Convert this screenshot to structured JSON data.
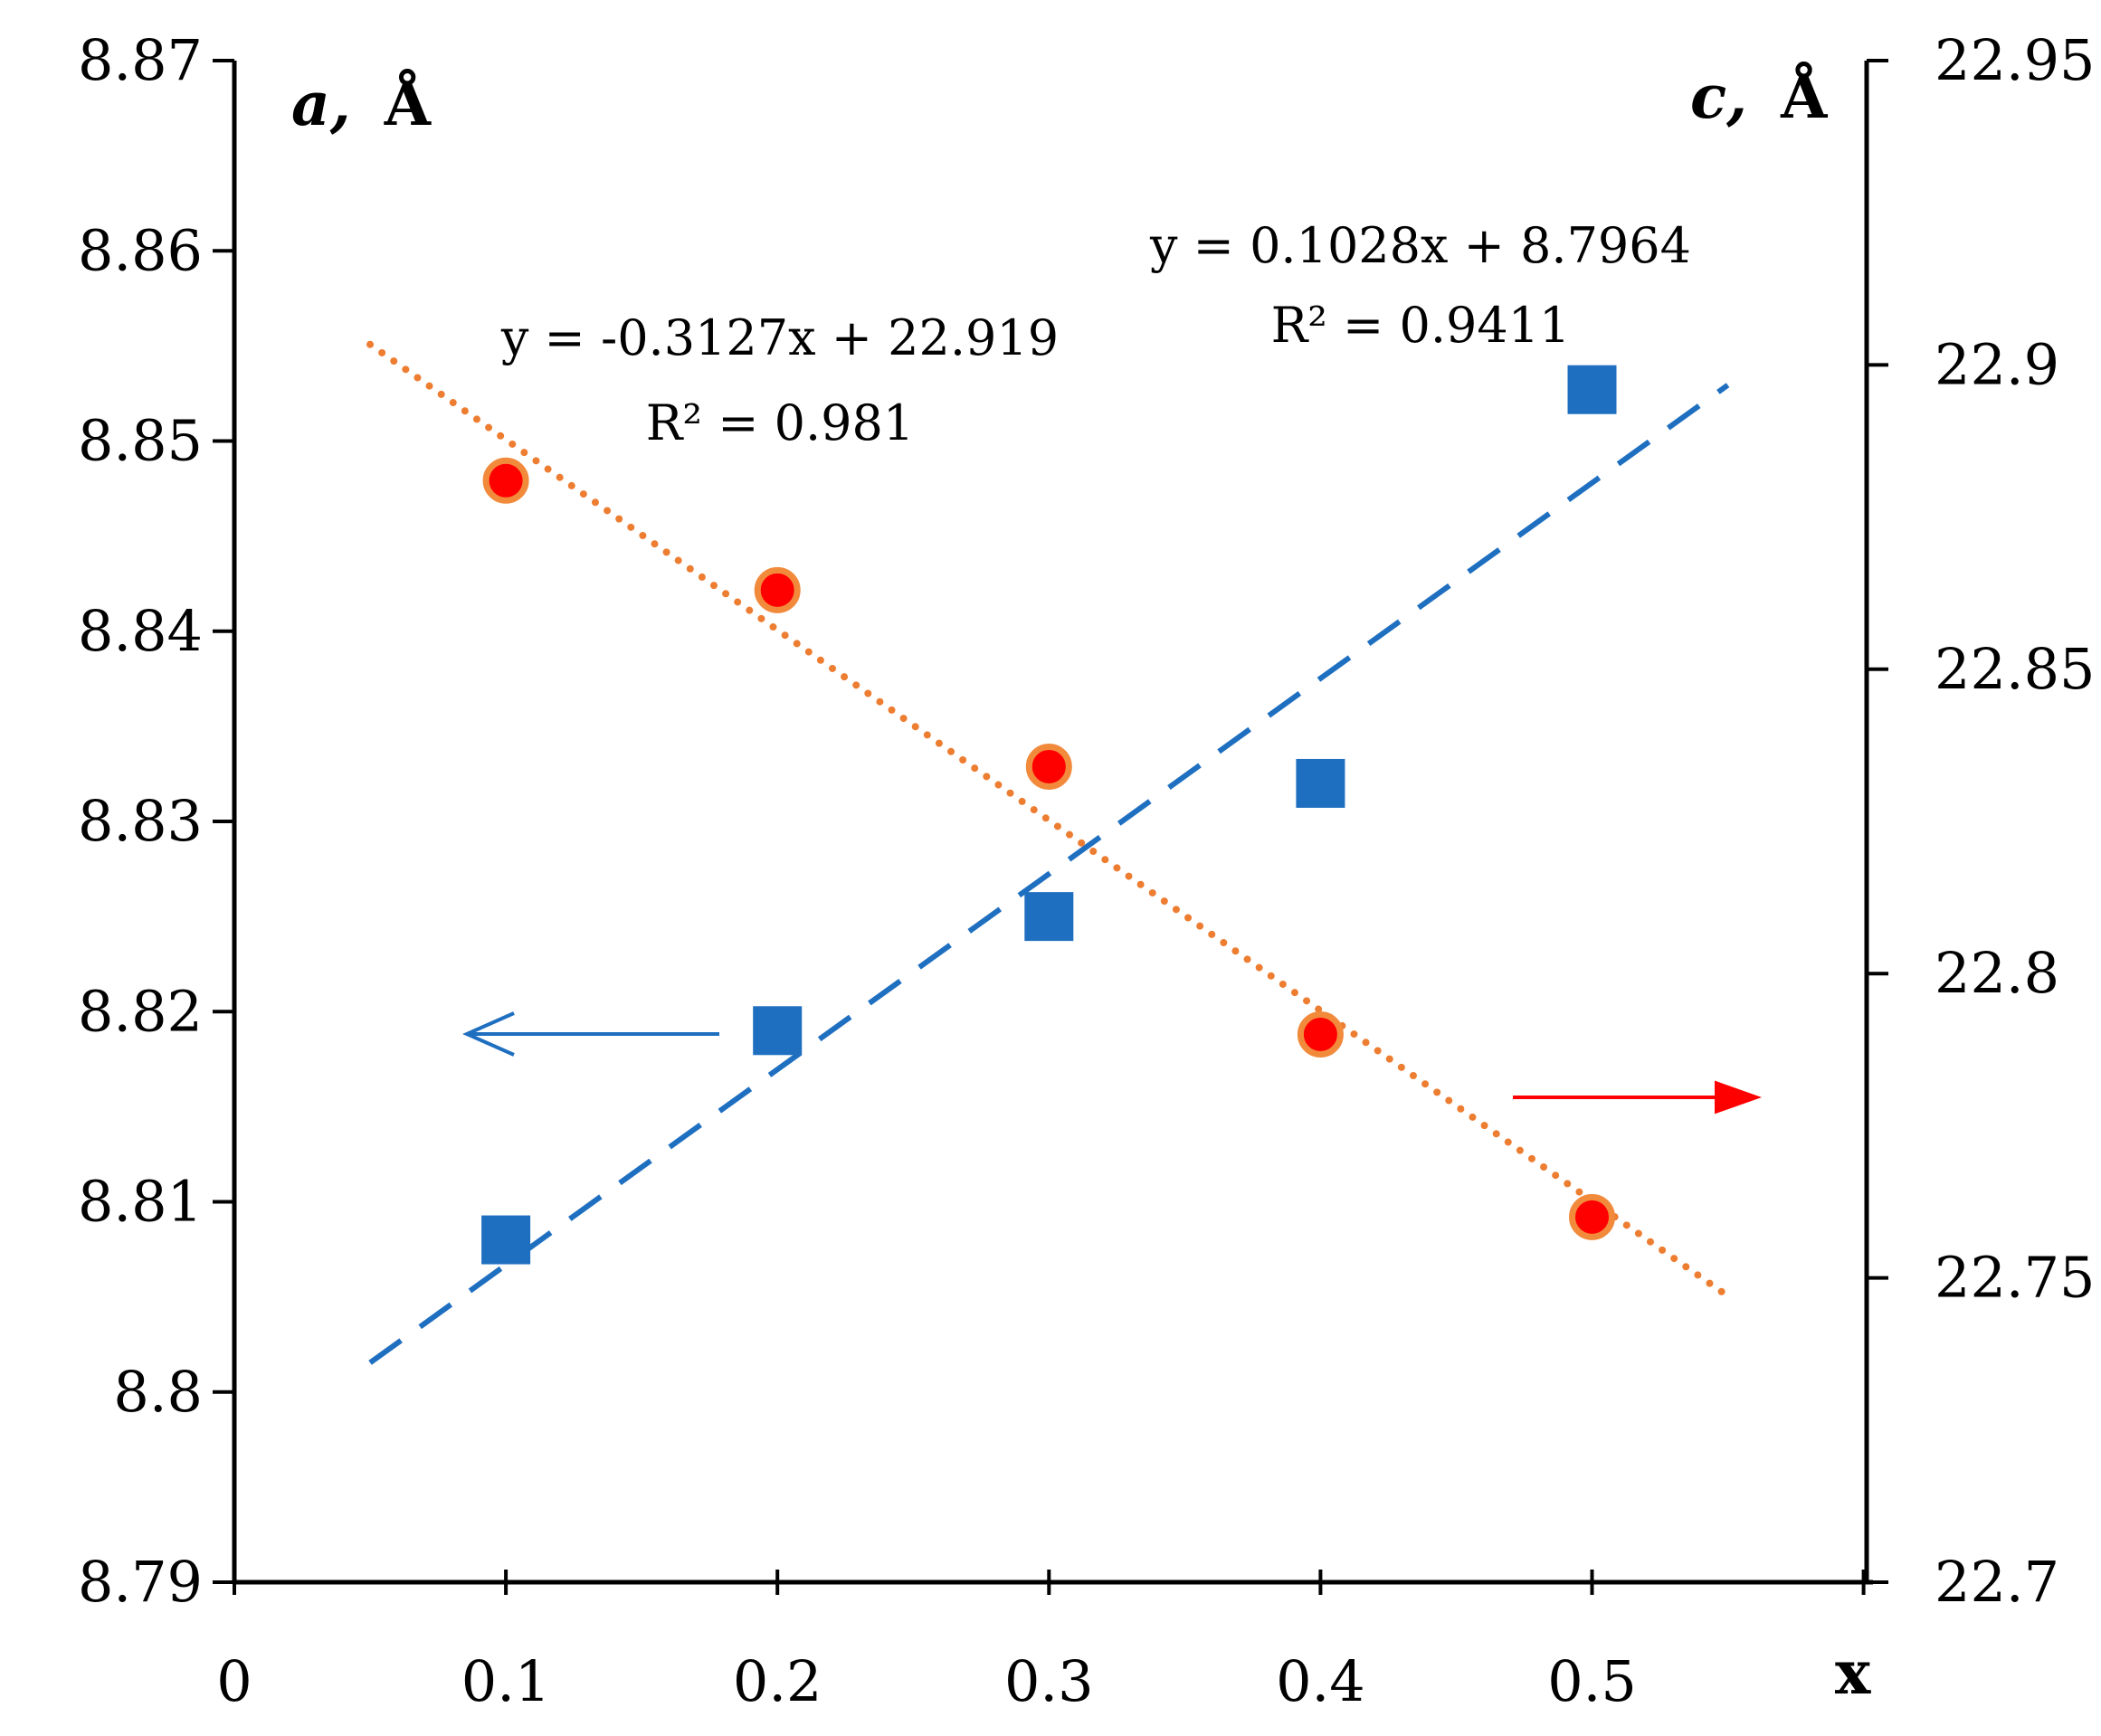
{
  "chart_data": {
    "type": "scatter",
    "xlabel": "x",
    "xlim": [
      0,
      0.6
    ],
    "xticks": [
      0,
      0.1,
      0.2,
      0.3,
      0.4,
      0.5
    ],
    "xtick_labels": [
      "0",
      "0.1",
      "0.2",
      "0.3",
      "0.4",
      "0.5"
    ],
    "left_axis": {
      "label_var": "a,",
      "label_unit": "Å",
      "ylim": [
        8.79,
        8.87
      ],
      "ticks": [
        8.79,
        8.8,
        8.81,
        8.82,
        8.83,
        8.84,
        8.85,
        8.86,
        8.87
      ],
      "tick_labels": [
        "8.79",
        "8.8",
        "8.81",
        "8.82",
        "8.83",
        "8.84",
        "8.85",
        "8.86",
        "8.87"
      ]
    },
    "right_axis": {
      "label_var": "c,",
      "label_unit": "Å",
      "ylim": [
        22.7,
        22.95
      ],
      "ticks": [
        22.7,
        22.75,
        22.8,
        22.85,
        22.9,
        22.95
      ],
      "tick_labels": [
        "22.7",
        "22.75",
        "22.8",
        "22.85",
        "22.9",
        "22.95"
      ]
    },
    "series": [
      {
        "name": "a",
        "axis": "left",
        "marker": "square",
        "color": "#1f6fc0",
        "x": [
          0.1,
          0.2,
          0.3,
          0.4,
          0.5
        ],
        "y": [
          8.808,
          8.819,
          8.825,
          8.832,
          8.8527
        ],
        "trendline": {
          "style": "dashed",
          "color": "#1f6fc0",
          "slope": 0.1028,
          "intercept": 8.7964,
          "x_range": [
            0.05,
            0.55
          ],
          "equation": "y = 0.1028x + 8.7964",
          "r_squared": "R² = 0.9411"
        }
      },
      {
        "name": "c",
        "axis": "right",
        "marker": "circle",
        "color": "#ff0000",
        "edge_color": "#f28a3c",
        "x": [
          0.1,
          0.2,
          0.3,
          0.4,
          0.5
        ],
        "y": [
          22.881,
          22.863,
          22.834,
          22.79,
          22.76
        ],
        "trendline": {
          "style": "dotted",
          "color": "#ed7d31",
          "slope": -0.3127,
          "intercept": 22.919,
          "x_range": [
            0.05,
            0.55
          ],
          "equation": "y = -0.3127x + 22.919",
          "r_squared": "R² = 0.981"
        }
      }
    ],
    "annotations": [
      {
        "type": "arrow",
        "direction": "left",
        "color": "#1f6fc0",
        "meaning": "series a uses left axis"
      },
      {
        "type": "arrow",
        "direction": "right",
        "color": "#ff0000",
        "meaning": "series c uses right axis"
      }
    ]
  }
}
